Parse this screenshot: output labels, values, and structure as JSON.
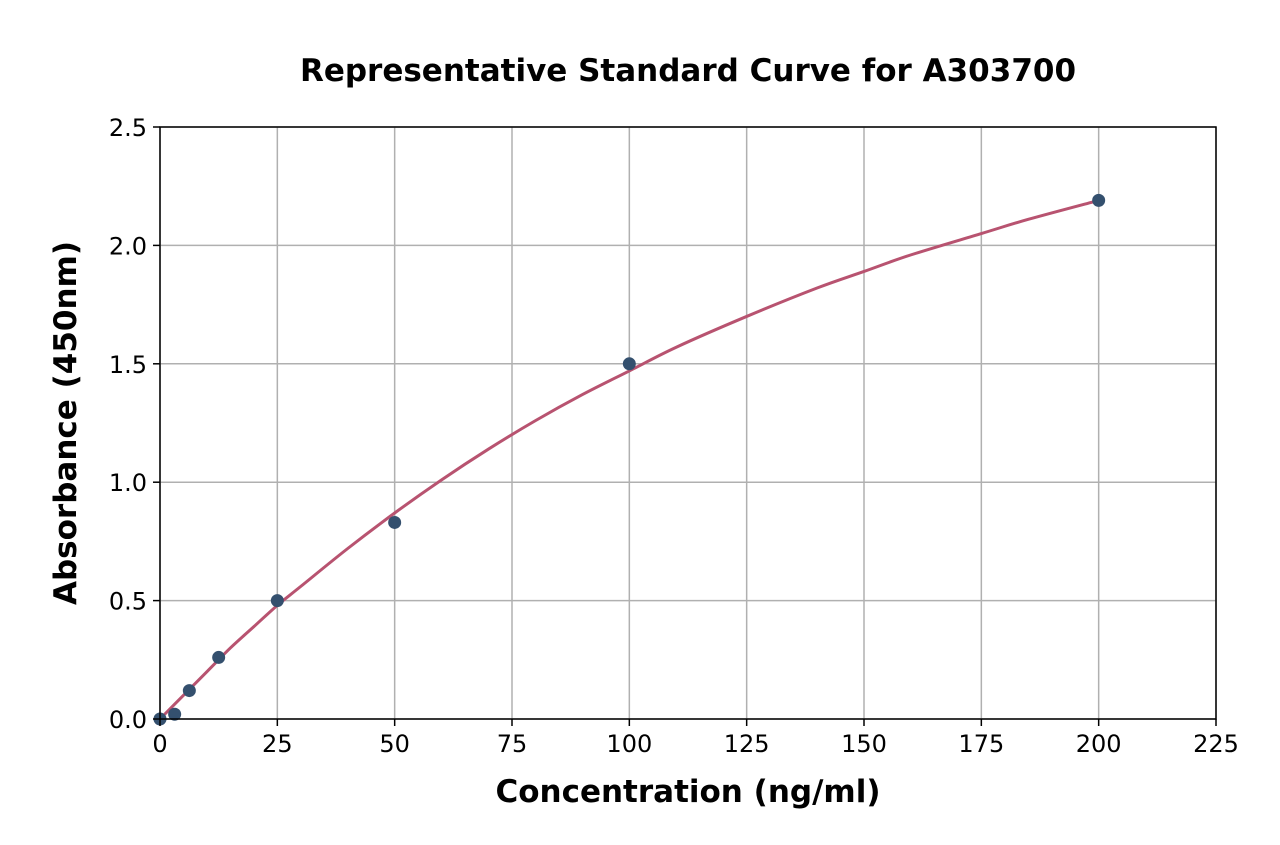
{
  "chart_data": {
    "type": "scatter",
    "title": "Representative Standard Curve for A303700",
    "xlabel": "Concentration (ng/ml)",
    "ylabel": "Absorbance (450nm)",
    "xlim": [
      0,
      225
    ],
    "ylim": [
      0,
      2.5
    ],
    "xticks": [
      "0",
      "25",
      "50",
      "75",
      "100",
      "125",
      "150",
      "175",
      "200",
      "225"
    ],
    "yticks": [
      "0.0",
      "0.5",
      "1.0",
      "1.5",
      "2.0",
      "2.5"
    ],
    "grid": true,
    "series": [
      {
        "kind": "points",
        "color": "#34506e",
        "x": [
          0,
          3.125,
          6.25,
          12.5,
          25,
          50,
          100,
          200
        ],
        "y": [
          0.0,
          0.02,
          0.12,
          0.26,
          0.5,
          0.83,
          1.5,
          2.19
        ]
      },
      {
        "kind": "fit-curve",
        "color": "#b85370",
        "x": [
          0,
          5,
          10,
          15,
          20,
          25,
          30,
          40,
          50,
          60,
          70,
          80,
          90,
          100,
          110,
          125,
          140,
          150,
          160,
          175,
          185,
          200
        ],
        "y": [
          0.0,
          0.1,
          0.2,
          0.3,
          0.39,
          0.48,
          0.56,
          0.72,
          0.87,
          1.01,
          1.14,
          1.26,
          1.37,
          1.47,
          1.57,
          1.7,
          1.82,
          1.89,
          1.96,
          2.05,
          2.11,
          2.19
        ]
      }
    ]
  }
}
